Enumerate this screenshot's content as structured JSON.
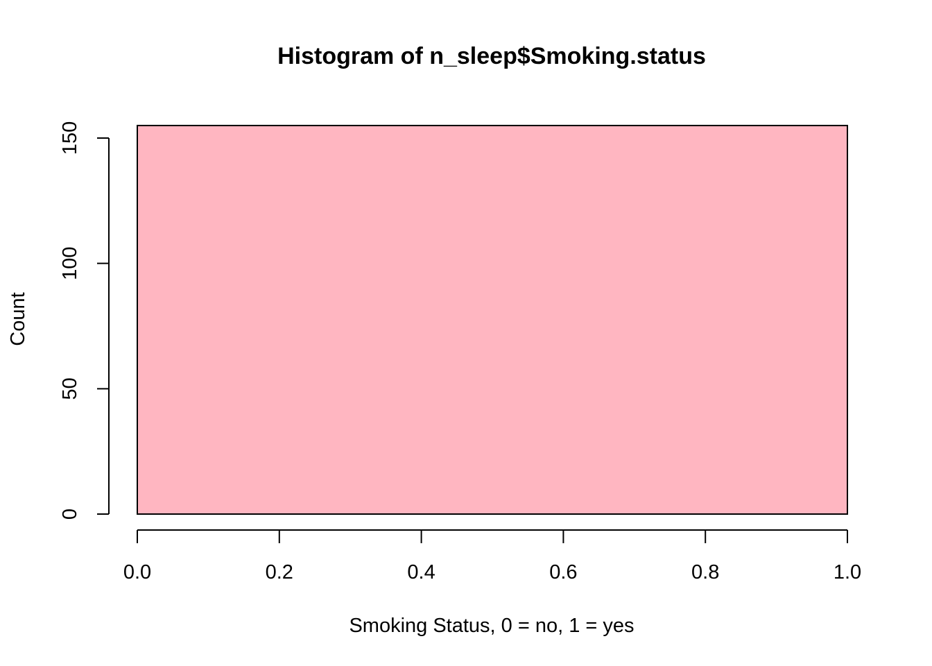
{
  "chart_data": {
    "type": "bar",
    "title": "Histogram of n_sleep$Smoking.status",
    "xlabel": "Smoking Status, 0 = no, 1 = yes",
    "ylabel": "Count",
    "bins": [
      {
        "x0": 0.0,
        "x1": 1.0,
        "value": 155
      }
    ],
    "xlim": [
      0.0,
      1.0
    ],
    "ylim": [
      0,
      150
    ],
    "x_ticks": [
      "0.0",
      "0.2",
      "0.4",
      "0.6",
      "0.8",
      "1.0"
    ],
    "y_ticks": [
      "0",
      "50",
      "100",
      "150"
    ],
    "bar_color": "#ffb6c1",
    "bar_border_color": "#000000",
    "grid": false
  }
}
